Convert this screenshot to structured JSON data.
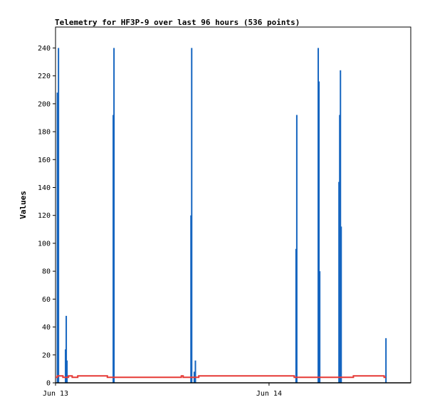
{
  "chart_data": {
    "type": "bar",
    "title": "Telemetry for HF3P-9 over last 96 hours (536 points)",
    "ylabel": "Values",
    "xlabel": "",
    "ylim": [
      0,
      255
    ],
    "y_ticks": [
      0,
      20,
      40,
      60,
      80,
      100,
      120,
      140,
      160,
      180,
      200,
      220,
      240
    ],
    "x_range_hours": [
      0,
      96
    ],
    "x_ticks": [
      {
        "hour": 0,
        "label": "Jun 13"
      },
      {
        "hour": 57.7,
        "label": "Jun 14"
      }
    ],
    "grid": false,
    "legend": "none",
    "series": [
      {
        "kind": "bar",
        "color": "#1565c0",
        "points": [
          {
            "hour": 0.5,
            "value": 208
          },
          {
            "hour": 0.8,
            "value": 240
          },
          {
            "hour": 2.7,
            "value": 24
          },
          {
            "hour": 2.9,
            "value": 48
          },
          {
            "hour": 3.1,
            "value": 16
          },
          {
            "hour": 15.6,
            "value": 192
          },
          {
            "hour": 15.8,
            "value": 240
          },
          {
            "hour": 36.6,
            "value": 120
          },
          {
            "hour": 36.8,
            "value": 240
          },
          {
            "hour": 37.5,
            "value": 8
          },
          {
            "hour": 37.8,
            "value": 16
          },
          {
            "hour": 65.0,
            "value": 96
          },
          {
            "hour": 65.2,
            "value": 192
          },
          {
            "hour": 71.0,
            "value": 240
          },
          {
            "hour": 71.2,
            "value": 216
          },
          {
            "hour": 71.4,
            "value": 80
          },
          {
            "hour": 76.6,
            "value": 144
          },
          {
            "hour": 76.8,
            "value": 192
          },
          {
            "hour": 77.0,
            "value": 224
          },
          {
            "hour": 77.2,
            "value": 112
          },
          {
            "hour": 89.3,
            "value": 32
          }
        ]
      },
      {
        "kind": "line",
        "color": "#e53935",
        "points": [
          {
            "hour": 0,
            "value": 4
          },
          {
            "hour": 0.5,
            "value": 5
          },
          {
            "hour": 2.0,
            "value": 4
          },
          {
            "hour": 3.5,
            "value": 5
          },
          {
            "hour": 4.5,
            "value": 4
          },
          {
            "hour": 6.0,
            "value": 5
          },
          {
            "hour": 13.5,
            "value": 5
          },
          {
            "hour": 14.0,
            "value": 4
          },
          {
            "hour": 15.0,
            "value": 4
          },
          {
            "hour": 33.5,
            "value": 4
          },
          {
            "hour": 34.0,
            "value": 5
          },
          {
            "hour": 34.5,
            "value": 4
          },
          {
            "hour": 38.5,
            "value": 4
          },
          {
            "hour": 38.7,
            "value": 5
          },
          {
            "hour": 64.0,
            "value": 5
          },
          {
            "hour": 64.5,
            "value": 4
          },
          {
            "hour": 80.0,
            "value": 4
          },
          {
            "hour": 80.5,
            "value": 5
          },
          {
            "hour": 88.5,
            "value": 5
          },
          {
            "hour": 88.8,
            "value": 4
          },
          {
            "hour": 89.3,
            "value": 4
          }
        ]
      }
    ]
  }
}
